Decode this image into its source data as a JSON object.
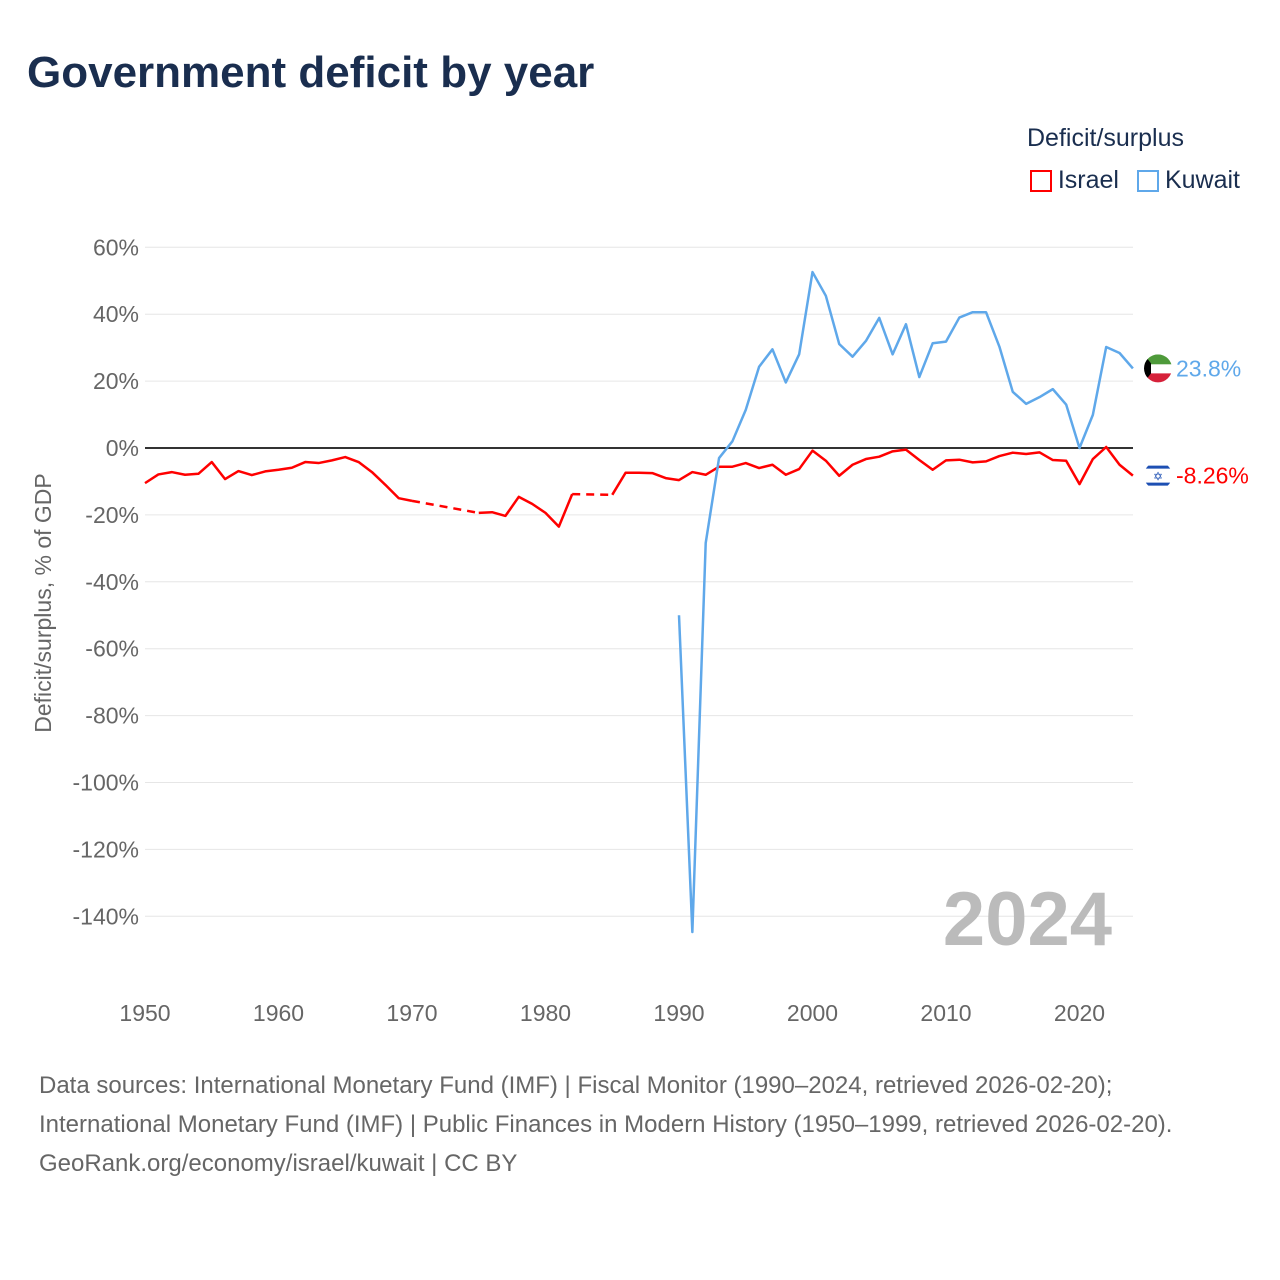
{
  "title": "Government deficit by year",
  "legend": {
    "title": "Deficit/surplus",
    "items": [
      {
        "label": "Israel",
        "color": "#ff0000"
      },
      {
        "label": "Kuwait",
        "color": "#5fa8ea"
      }
    ]
  },
  "year_watermark": "2024",
  "footer": {
    "sources": "Data sources: International Monetary Fund (IMF) | Fiscal Monitor (1990–2024, retrieved 2026-02-20); International Monetary Fund (IMF) | Public Finances in Modern History (1950–1999, retrieved 2026-02-20).",
    "credit": "GeoRank.org/economy/israel/kuwait | CC BY"
  },
  "chart_data": {
    "type": "line",
    "title": "Government deficit by year",
    "xlabel": "",
    "ylabel": "Deficit/surplus, % of GDP",
    "xlim": [
      1950,
      2024
    ],
    "ylim": [
      -150,
      60
    ],
    "xticks": [
      "1950",
      "1960",
      "1970",
      "1980",
      "1990",
      "2000",
      "2010",
      "2020"
    ],
    "yticks": [
      "60%",
      "40%",
      "20%",
      "0%",
      "-20%",
      "-40%",
      "-60%",
      "-80%",
      "-100%",
      "-120%",
      "-140%"
    ],
    "ytick_values": [
      60,
      40,
      20,
      0,
      -20,
      -40,
      -60,
      -80,
      -100,
      -120,
      -140
    ],
    "grid": true,
    "legend_position": "top-right",
    "series": [
      {
        "name": "Israel",
        "color": "#ff0000",
        "end_label": "-8.26%",
        "start_year": 1950,
        "values": [
          -10.5,
          -7.9,
          -7.2,
          -8,
          -7.7,
          -4.2,
          -9.3,
          -6.9,
          -8.1,
          -7,
          -6.5,
          -5.9,
          -4.2,
          -4.5,
          -3.7,
          -2.7,
          -4.2,
          -7.2,
          -11,
          -15,
          -15.8,
          null,
          null,
          null,
          null,
          -19.4,
          -19.2,
          -20.3,
          -14.6,
          -16.7,
          -19.4,
          -23.5,
          -13.8,
          null,
          null,
          -14,
          -7.4,
          -7.4,
          -7.5,
          -9,
          -9.6,
          -7.2,
          -8,
          -5.6,
          -5.6,
          -4.5,
          -6,
          -5,
          -8,
          -6.3,
          -0.8,
          -3.8,
          -8.3,
          -5,
          -3.3,
          -2.6,
          -1,
          -0.5,
          -3.6,
          -6.5,
          -3.7,
          -3.5,
          -4.3,
          -4,
          -2.4,
          -1.4,
          -1.8,
          -1.3,
          -3.6,
          -3.8,
          -10.8,
          -3.3,
          0.3,
          -5,
          -8.26
        ]
      },
      {
        "name": "Kuwait",
        "color": "#5fa8ea",
        "end_label": "23.8%",
        "start_year": 1990,
        "values": [
          -50,
          -144.7,
          -28.4,
          -3,
          2,
          11.4,
          24.3,
          29.5,
          19.6,
          28,
          52.6,
          45.5,
          31.1,
          27.3,
          32,
          38.9,
          28,
          37,
          21.2,
          31.3,
          31.8,
          39,
          40.6,
          40.6,
          30.3,
          16.8,
          13.2,
          15.2,
          17.6,
          13,
          0,
          9.9,
          30.2,
          28.4,
          23.8
        ]
      }
    ]
  }
}
